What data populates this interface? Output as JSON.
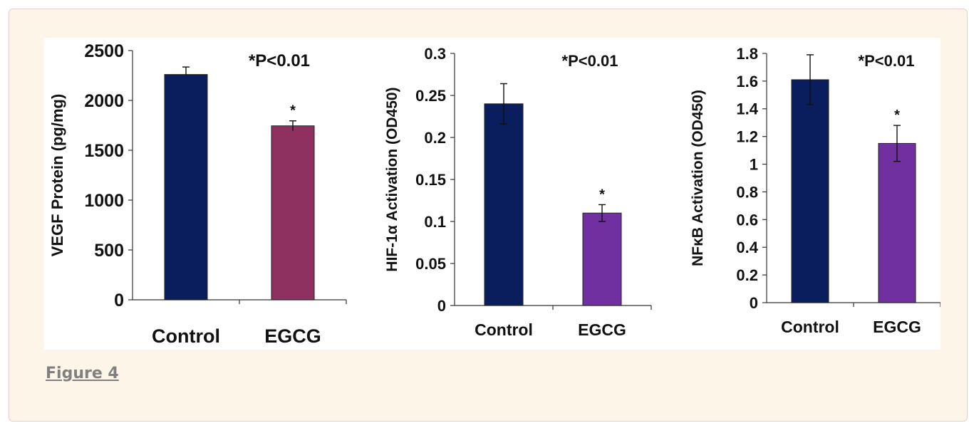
{
  "figure_link": "Figure 4",
  "chart_data": [
    {
      "type": "bar",
      "categories": [
        "Control",
        "EGCG"
      ],
      "values": [
        2260,
        1745
      ],
      "error": [
        75,
        50
      ],
      "ylabel": "VEGF Protein (pg/mg)",
      "ylim": [
        0,
        2500
      ],
      "yticks": [
        "0",
        "500",
        "1000",
        "1500",
        "2000",
        "2500"
      ],
      "annotation": "*P<0.01",
      "significance": [
        "",
        "*"
      ],
      "colors": [
        "#0a1d5c",
        "#8f3160"
      ]
    },
    {
      "type": "bar",
      "categories": [
        "Control",
        "EGCG"
      ],
      "values": [
        0.24,
        0.11
      ],
      "error": [
        0.024,
        0.01
      ],
      "ylabel": "HIF-1α Activation (OD450)",
      "ylim": [
        0,
        0.3
      ],
      "yticks": [
        "0",
        "0.05",
        "0.1",
        "0.15",
        "0.2",
        "0.25",
        "0.3"
      ],
      "annotation": "*P<0.01",
      "significance": [
        "",
        "*"
      ],
      "colors": [
        "#0a1d5c",
        "#7030a0"
      ]
    },
    {
      "type": "bar",
      "categories": [
        "Control",
        "EGCG"
      ],
      "values": [
        1.61,
        1.15
      ],
      "error": [
        0.18,
        0.13
      ],
      "ylabel": "NFκB Activation (OD450)",
      "ylim": [
        0,
        1.8
      ],
      "yticks": [
        "0",
        "0.2",
        "0.4",
        "0.6",
        "0.8",
        "1",
        "1.2",
        "1.4",
        "1.6",
        "1.8"
      ],
      "annotation": "*P<0.01",
      "significance": [
        "",
        "*"
      ],
      "colors": [
        "#0a1d5c",
        "#7030a0"
      ]
    }
  ]
}
